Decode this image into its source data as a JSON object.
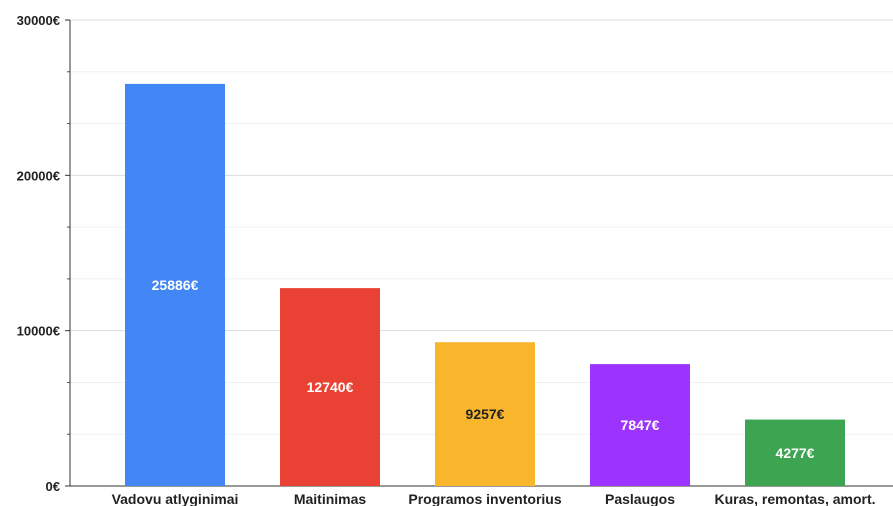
{
  "chart_data": {
    "type": "bar",
    "title": "",
    "xlabel": "",
    "ylabel": "",
    "categories": [
      "Vadovu atlyginimai",
      "Maitinimas",
      "Programos inventorius",
      "Paslaugos",
      "Kuras, remontas, amort."
    ],
    "values": [
      25886,
      12740,
      9257,
      7847,
      4277
    ],
    "data_labels": [
      "25886€",
      "12740€",
      "9257€",
      "7847€",
      "4277€"
    ],
    "bar_colors": [
      "#4285f4",
      "#e94235",
      "#f9b62c",
      "#9c33ff",
      "#3da552"
    ],
    "data_label_colors": [
      "#ffffff",
      "#ffffff",
      "#222222",
      "#ffffff",
      "#ffffff"
    ],
    "y_ticks": [
      0,
      10000,
      20000,
      30000
    ],
    "y_tick_labels": [
      "0€",
      "10000€",
      "20000€",
      "30000€"
    ],
    "ylim": [
      0,
      30000
    ],
    "minor_gridlines": true,
    "grid": true,
    "legend": "none"
  }
}
